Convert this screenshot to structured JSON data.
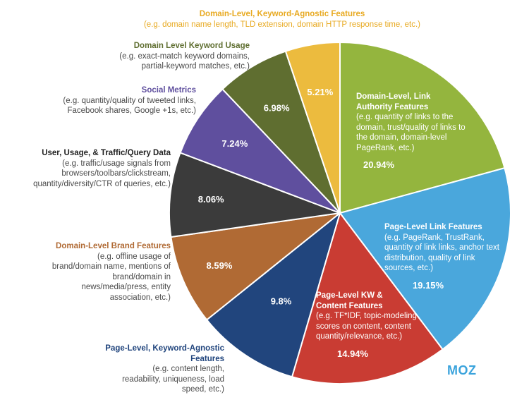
{
  "chart_data": {
    "type": "pie",
    "title": "",
    "slices": [
      {
        "name": "Domain-Level, Link Authority Features",
        "value": 20.94,
        "label": "20.94%",
        "color": "#94b53e",
        "desc": "(e.g. quantity of links to the domain, trust/quality of links to the domain, domain-level PageRank, etc.)"
      },
      {
        "name": "Page-Level Link Features",
        "value": 19.15,
        "label": "19.15%",
        "color": "#4aa7dc",
        "desc": "(e.g. PageRank, TrustRank, quantity of link links, anchor text distribution, quality of link sources, etc.)"
      },
      {
        "name": "Page-Level KW & Content Features",
        "value": 14.94,
        "label": "14.94%",
        "color": "#c93c33",
        "desc": "(e.g. TF*IDF, topic-modeling scores on content, content quantity/relevance, etc.)"
      },
      {
        "name": "Page-Level, Keyword-Agnostic Features",
        "value": 9.8,
        "label": "9.8%",
        "color": "#21457d",
        "desc": "(e.g. content length, readability, uniqueness, load speed, etc.)"
      },
      {
        "name": "Domain-Level Brand Features",
        "value": 8.59,
        "label": "8.59%",
        "color": "#b06a34",
        "desc": "(e.g. offline usage of brand/domain name, mentions of brand/domain in news/media/press, entity association, etc.)"
      },
      {
        "name": "User, Usage, & Traffic/Query Data",
        "value": 8.06,
        "label": "8.06%",
        "color": "#3b3b3b",
        "desc": "(e.g. traffic/usage signals from browsers/toolbars/clickstream, quantity/diversity/CTR of queries, etc.)"
      },
      {
        "name": "Social Metrics",
        "value": 7.24,
        "label": "7.24%",
        "color": "#5f4f9e",
        "desc": "(e.g. quantity/quality of tweeted links, Facebook shares, Google +1s, etc.)"
      },
      {
        "name": "Domain Level Keyword Usage",
        "value": 6.98,
        "label": "6.98%",
        "color": "#5f6e30",
        "desc": "(e.g. exact-match keyword domains, partial-keyword matches, etc.)"
      },
      {
        "name": "Domain-Level, Keyword-Agnostic Features",
        "value": 5.21,
        "label": "5.21%",
        "color": "#ecbb3e",
        "desc": "(e.g. domain name length, TLD extension, domain HTTP response time, etc.)"
      }
    ]
  },
  "brand": "MOZ",
  "colors": {
    "desc_text": "#4a4a4a",
    "dark_text": "#222222",
    "label_white": "#ffffff"
  }
}
